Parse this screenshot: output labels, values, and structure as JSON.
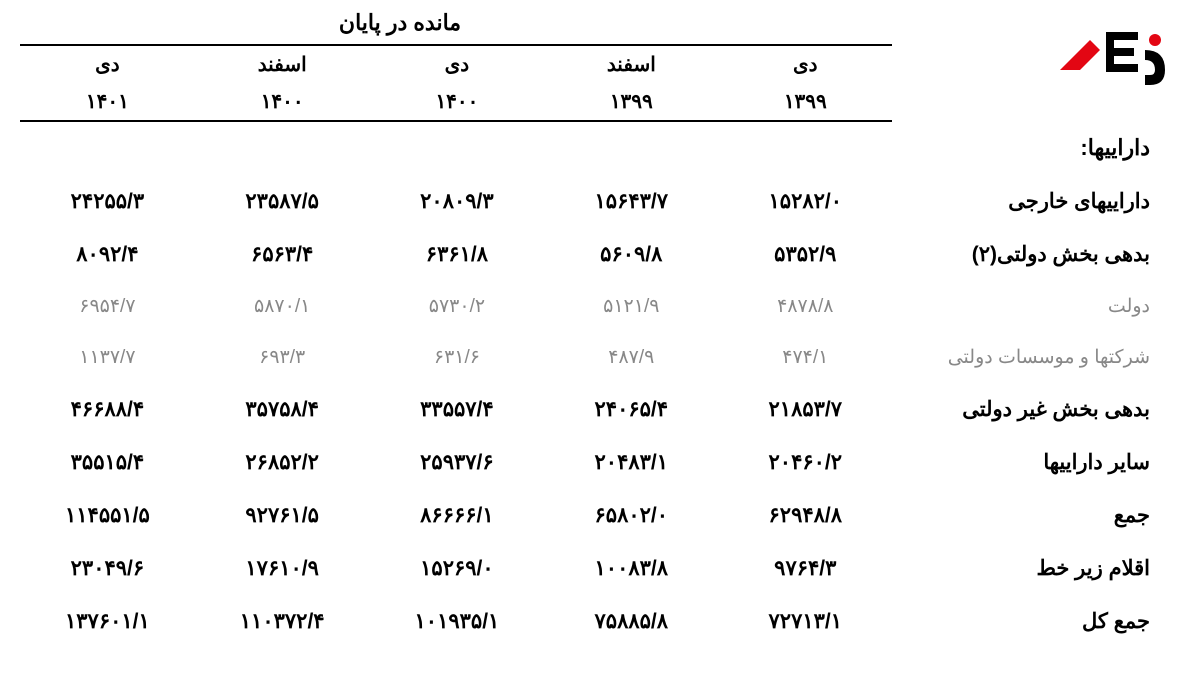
{
  "logo": {
    "text": "رکنا",
    "colors": {
      "red": "#e30613",
      "black": "#000000"
    }
  },
  "table": {
    "header_title": "مانده در پایان",
    "columns": [
      {
        "period": "دی",
        "year": "۱۳۹۹"
      },
      {
        "period": "اسفند",
        "year": "۱۳۹۹"
      },
      {
        "period": "دی",
        "year": "۱۴۰۰"
      },
      {
        "period": "اسفند",
        "year": "۱۴۰۰"
      },
      {
        "period": "دی",
        "year": "۱۴۰۱"
      }
    ],
    "rows": [
      {
        "label": "داراییها:",
        "type": "section",
        "values": [
          "",
          "",
          "",
          "",
          ""
        ]
      },
      {
        "label": "داراییهای خارجی",
        "type": "normal",
        "values": [
          "۱۵۲۸۲/۰",
          "۱۵۶۴۳/۷",
          "۲۰۸۰۹/۳",
          "۲۳۵۸۷/۵",
          "۲۴۲۵۵/۳"
        ]
      },
      {
        "label": "بدهی بخش دولتی(۲)",
        "type": "normal",
        "values": [
          "۵۳۵۲/۹",
          "۵۶۰۹/۸",
          "۶۳۶۱/۸",
          "۶۵۶۳/۴",
          "۸۰۹۲/۴"
        ]
      },
      {
        "label": "دولت",
        "type": "sub",
        "values": [
          "۴۸۷۸/۸",
          "۵۱۲۱/۹",
          "۵۷۳۰/۲",
          "۵۸۷۰/۱",
          "۶۹۵۴/۷"
        ]
      },
      {
        "label": "شرکتها و موسسات دولتی",
        "type": "sub",
        "values": [
          "۴۷۴/۱",
          "۴۸۷/۹",
          "۶۳۱/۶",
          "۶۹۳/۳",
          "۱۱۳۷/۷"
        ]
      },
      {
        "label": "بدهی بخش غیر دولتی",
        "type": "normal",
        "values": [
          "۲۱۸۵۳/۷",
          "۲۴۰۶۵/۴",
          "۳۳۵۵۷/۴",
          "۳۵۷۵۸/۴",
          "۴۶۶۸۸/۴"
        ]
      },
      {
        "label": "سایر داراییها",
        "type": "normal",
        "values": [
          "۲۰۴۶۰/۲",
          "۲۰۴۸۳/۱",
          "۲۵۹۳۷/۶",
          "۲۶۸۵۲/۲",
          "۳۵۵۱۵/۴"
        ]
      },
      {
        "label": "جمع",
        "type": "normal",
        "values": [
          "۶۲۹۴۸/۸",
          "۶۵۸۰۲/۰",
          "۸۶۶۶۶/۱",
          "۹۲۷۶۱/۵",
          "۱۱۴۵۵۱/۵"
        ]
      },
      {
        "label": "اقلام زیر خط",
        "type": "normal",
        "values": [
          "۹۷۶۴/۳",
          "۱۰۰۸۳/۸",
          "۱۵۲۶۹/۰",
          "۱۷۶۱۰/۹",
          "۲۳۰۴۹/۶"
        ]
      },
      {
        "label": "جمع کل",
        "type": "normal",
        "values": [
          "۷۲۷۱۳/۱",
          "۷۵۸۸۵/۸",
          "۱۰۱۹۳۵/۱",
          "۱۱۰۳۷۲/۴",
          "۱۳۷۶۰۱/۱"
        ]
      }
    ]
  },
  "styling": {
    "background_color": "#ffffff",
    "text_color": "#000000",
    "sub_text_color": "#888888",
    "border_color": "#000000",
    "font_family": "Tahoma",
    "header_fontsize": 22,
    "cell_fontsize": 21,
    "sub_cell_fontsize": 19
  }
}
